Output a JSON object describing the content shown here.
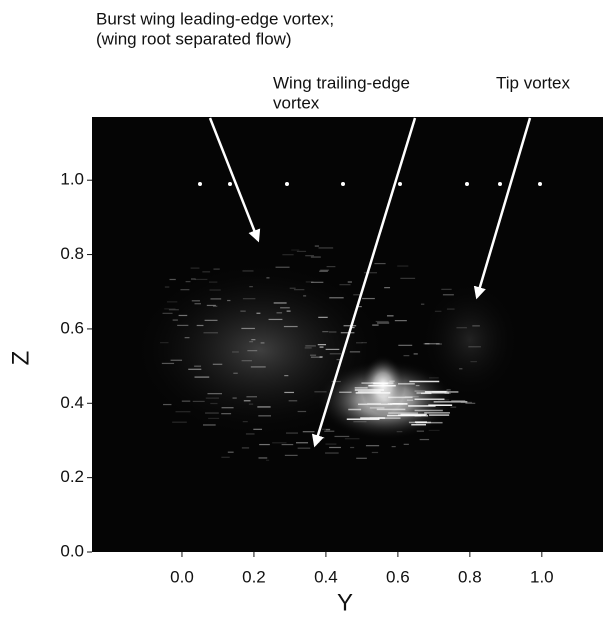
{
  "chart_data": {
    "type": "image",
    "annotations": [
      {
        "lines": [
          "Burst wing leading-edge vortex;",
          "(wing root separated flow)"
        ]
      },
      {
        "lines": [
          "Wing trailing-edge",
          "vortex"
        ]
      },
      {
        "lines": [
          "Tip vortex"
        ]
      }
    ],
    "xlabel": "Y",
    "ylabel": "Z",
    "xlim": [
      -0.25,
      1.17
    ],
    "ylim": [
      0,
      1.17
    ],
    "xticks": [
      {
        "value": 0,
        "label": "0.0"
      },
      0.2,
      0.4,
      0.6,
      0.8,
      {
        "value": 1,
        "label": "1.0"
      }
    ],
    "yticks": [
      {
        "value": 0,
        "label": "0.0"
      },
      0.2,
      0.4,
      0.6,
      0.8,
      {
        "value": 1,
        "label": "1.0"
      }
    ]
  }
}
